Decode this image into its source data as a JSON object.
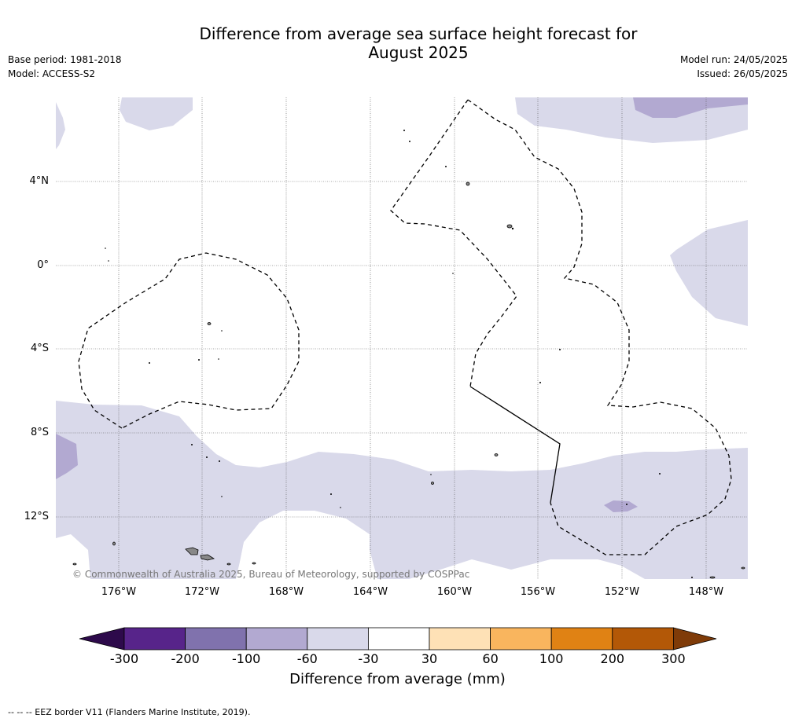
{
  "title_line1": "Difference from average sea surface height forecast for",
  "title_line2": "August 2025",
  "base_period": "Base period: 1981-2018",
  "model": "Model: ACCESS-S2",
  "model_run": "Model run: 24/05/2025",
  "issued": "Issued: 26/05/2025",
  "lat_labels": [
    "4°N",
    "0°",
    "4°S",
    "8°S",
    "12°S"
  ],
  "lon_labels": [
    "176°W",
    "172°W",
    "168°W",
    "164°W",
    "160°W",
    "156°W",
    "152°W",
    "148°W"
  ],
  "copyright": "© Commonwealth of Australia 2025, Bureau of Meteorology, supported by COSPPac",
  "colorbar": {
    "ticks": [
      "-300",
      "-200",
      "-100",
      "-60",
      "-30",
      "30",
      "60",
      "100",
      "200",
      "300"
    ],
    "colors": [
      "#2d0a4b",
      "#57248a",
      "#8072ad",
      "#b2a9d1",
      "#d9d9ea",
      "#ffffff",
      "#fee1b6",
      "#f9b55e",
      "#e08214",
      "#b35807",
      "#7f3b08"
    ],
    "label": "Difference from average (mm)"
  },
  "eez_note": "--  --  -- EEZ border V11 (Flanders Marine Institute, 2019)."
}
